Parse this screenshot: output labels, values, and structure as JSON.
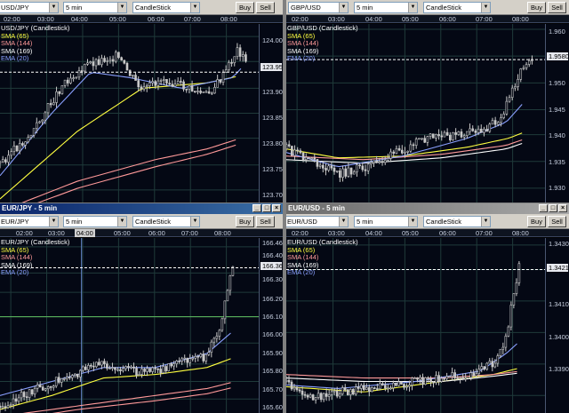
{
  "panes": [
    {
      "id": "usdjpy",
      "symbol": "USD/JPY",
      "interval": "5 min",
      "chart_type": "CandleStick",
      "buy": "Buy",
      "sell": "Sell",
      "series_title": "USD/JPY (Candlestick)",
      "legend": [
        {
          "text": "SMA (65)",
          "color": "#ffff40"
        },
        {
          "text": "SMA (144)",
          "color": "#ff9999"
        },
        {
          "text": "SMA (169)",
          "color": "#ffffff"
        },
        {
          "text": "EMA (20)",
          "color": "#8aa0ff"
        }
      ],
      "times": [
        "02:00",
        "03:00",
        "04:00",
        "05:00",
        "06:00",
        "07:00",
        "08:00"
      ],
      "prices": [
        "124.00",
        "123.95",
        "123.90",
        "123.85",
        "123.80",
        "123.75",
        "123.70"
      ],
      "current_price": "123.95"
    },
    {
      "id": "gbpusd",
      "symbol": "GBP/USD",
      "interval": "5 min",
      "chart_type": "CandleStick",
      "buy": "Buy",
      "sell": "Sell",
      "series_title": "GBP/USD (Candlestick)",
      "legend": [
        {
          "text": "SMA (65)",
          "color": "#ffff40"
        },
        {
          "text": "SMA (144)",
          "color": "#ff9999"
        },
        {
          "text": "SMA (169)",
          "color": "#ffffff"
        },
        {
          "text": "EMA (20)",
          "color": "#8aa0ff"
        }
      ],
      "times": [
        "02:00",
        "03:00",
        "04:00",
        "05:00",
        "06:00",
        "07:00",
        "08:00"
      ],
      "prices": [
        "1.960",
        "1.955",
        "1.950",
        "1.945",
        "1.940",
        "1.935",
        "1.930"
      ],
      "current_price": "1.9580"
    },
    {
      "id": "eurjpy",
      "window_title": "EUR/JPY - 5 min",
      "symbol": "EUR/JPY",
      "interval": "5 min",
      "chart_type": "CandleStick",
      "buy": "Buy",
      "sell": "Sell",
      "series_title": "EUR/JPY (Candlestick)",
      "legend": [
        {
          "text": "SMA (65)",
          "color": "#ffff40"
        },
        {
          "text": "SMA (144)",
          "color": "#ff9999"
        },
        {
          "text": "SMA (169)",
          "color": "#ffffff"
        },
        {
          "text": "EMA (20)",
          "color": "#8aa0ff"
        }
      ],
      "times": [
        "02:00",
        "03:00",
        "04:00",
        "05:00",
        "06:00",
        "07:00",
        "08:00"
      ],
      "crosshair_time": "04:00",
      "prices": [
        "166.46",
        "166.40",
        "166.36",
        "166.30",
        "166.20",
        "166.10",
        "166.00",
        "165.90",
        "165.80",
        "165.70",
        "165.60"
      ],
      "current_price": "166.36"
    },
    {
      "id": "eurusd",
      "window_title": "EUR/USD - 5 min",
      "symbol": "EUR/USD",
      "interval": "5 min",
      "chart_type": "CandleStick",
      "buy": "Buy",
      "sell": "Sell",
      "series_title": "EUR/USD (Candlestick)",
      "legend": [
        {
          "text": "SMA (65)",
          "color": "#ffff40"
        },
        {
          "text": "SMA (144)",
          "color": "#ff9999"
        },
        {
          "text": "SMA (169)",
          "color": "#ffffff"
        },
        {
          "text": "EMA (20)",
          "color": "#8aa0ff"
        }
      ],
      "times": [
        "02:00",
        "03:00",
        "04:00",
        "05:00",
        "06:00",
        "07:00",
        "08:00"
      ],
      "prices": [
        "1.3430",
        "1.3421",
        "1.3410",
        "1.3400",
        "1.3390"
      ],
      "current_price": "1.3421"
    }
  ],
  "colors": {
    "grid": "#1f3a3a",
    "candle": "#c8c8c8",
    "ma_yellow": "#ffff40",
    "ma_pink": "#ff9999",
    "ma_white": "#ffffff",
    "ma_blue": "#8aa0ff",
    "crosshair": "#6688cc",
    "hline_green": "#60c060"
  }
}
